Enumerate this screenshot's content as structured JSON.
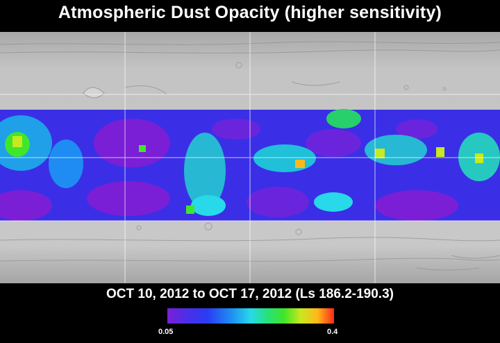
{
  "title": "Atmospheric Dust Opacity (higher sensitivity)",
  "date_range": "OCT 10, 2012 to OCT 17, 2012 (Ls 186.2-190.3)",
  "colorbar": {
    "min_label": "0.05",
    "max_label": "0.4",
    "min_value": 0.05,
    "max_value": 0.4,
    "colors": [
      "#7a1fd6",
      "#2a3cf2",
      "#27d9e9",
      "#3fe62a",
      "#ffb81a",
      "#ff2a1a"
    ]
  },
  "map": {
    "base_color": "#b8b8b8",
    "grid_color": "#ffffff",
    "grid_columns": 4,
    "grid_rows": 4
  }
}
